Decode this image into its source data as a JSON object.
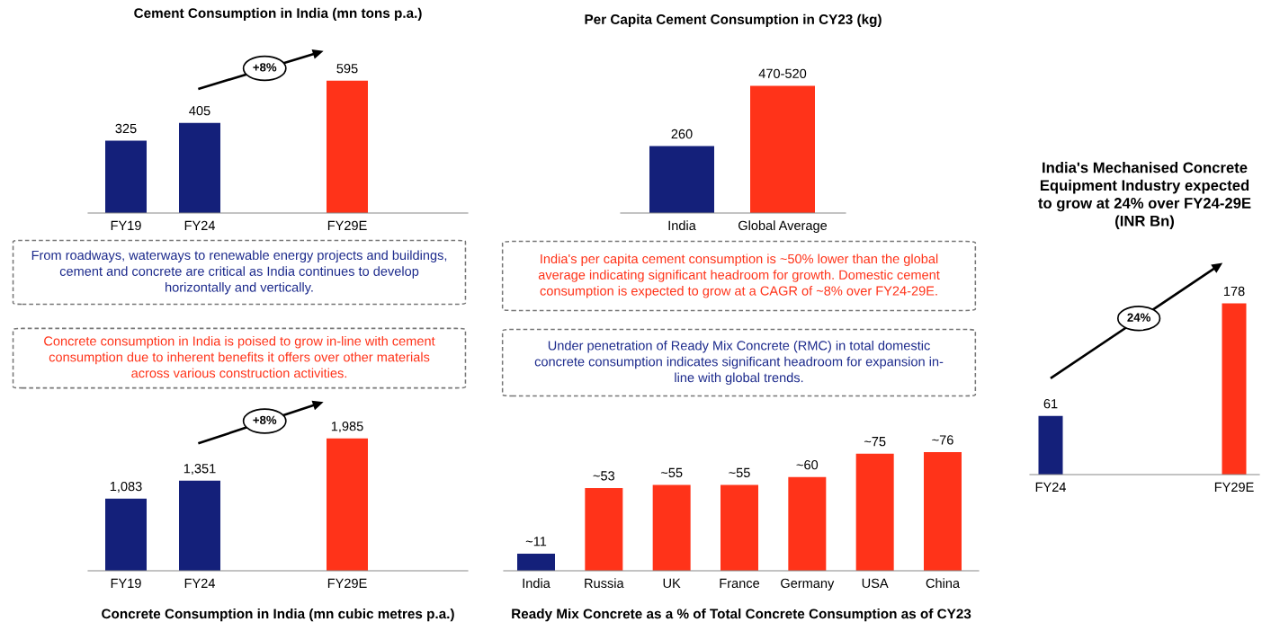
{
  "chart_data": [
    {
      "type": "bar",
      "title": "Cement Consumption in India (mn tons p.a.)",
      "categories": [
        "FY19",
        "FY24",
        null,
        "FY29E"
      ],
      "values": [
        325,
        405,
        null,
        595
      ],
      "colors": [
        "#14207a",
        "#14207a",
        null,
        "#ff3319"
      ],
      "data_labels": true,
      "annotations": [
        "+8%"
      ]
    },
    {
      "type": "other",
      "color": "#1c2a8c",
      "annotations": [
        "From roadways, waterways to renewable energy projects and buildings,\ncement and concrete are critical as India continues to develop\nhorizontally and vertically."
      ]
    },
    {
      "type": "other",
      "color": "#ff3319",
      "annotations": [
        "Concrete consumption in India is poised to grow in-line with cement\nconsumption due to inherent benefits it offers over other materials\nacross various construction activities."
      ]
    },
    {
      "type": "bar",
      "title": "Concrete Consumption in India (mn cubic metres p.a.)",
      "categories": [
        "FY19",
        "FY24",
        null,
        "FY29E"
      ],
      "values": [
        1083,
        1351,
        null,
        1985
      ],
      "colors": [
        "#14207a",
        "#14207a",
        null,
        "#ff3319"
      ],
      "value_labels": [
        "1,083",
        "1,351",
        null,
        "1,985"
      ],
      "annotations": [
        "+8%"
      ]
    },
    {
      "type": "bar",
      "title": "Per Capita Cement Consumption in CY23 (kg)",
      "categories": [
        "India",
        "Global Average"
      ],
      "values": [
        260,
        495
      ],
      "colors": [
        "#14207a",
        "#ff3319"
      ],
      "value_labels": [
        "260",
        "470-520"
      ]
    },
    {
      "type": "other",
      "color": "#ff3319",
      "annotations": [
        "India's per capita cement consumption is ~50% lower than the global\naverage indicating significant headroom for growth. Domestic cement\nconsumption is expected to grow at a CAGR of ~8% over FY24-29E."
      ]
    },
    {
      "type": "other",
      "color": "#1c2a8c",
      "annotations": [
        "Under penetration of Ready Mix Concrete (RMC) in total domestic\nconcrete consumption indicates significant headroom for expansion in-\nline with global trends."
      ]
    },
    {
      "type": "bar",
      "title": "Ready Mix Concrete as a % of Total Concrete Consumption as of CY23",
      "categories": [
        "India",
        "Russia",
        "UK",
        "France",
        "Germany",
        "USA",
        "China"
      ],
      "values": [
        11,
        53,
        55,
        55,
        60,
        75,
        76
      ],
      "colors": [
        "#14207a",
        "#ff3319",
        "#ff3319",
        "#ff3319",
        "#ff3319",
        "#ff3319",
        "#ff3319"
      ],
      "value_labels": [
        "~11",
        "~53",
        "~55",
        "~55",
        "~60",
        "~75",
        "~76"
      ]
    },
    {
      "type": "bar",
      "title": "India's Mechanised Concrete\nEquipment Industry expected\nto grow at 24% over FY24-29E\n(INR Bn)",
      "categories": [
        "FY24",
        "FY29E"
      ],
      "values": [
        61,
        178
      ],
      "colors": [
        "#14207a",
        "#ff3319"
      ],
      "data_labels": true,
      "annotations": [
        "24%"
      ]
    }
  ]
}
